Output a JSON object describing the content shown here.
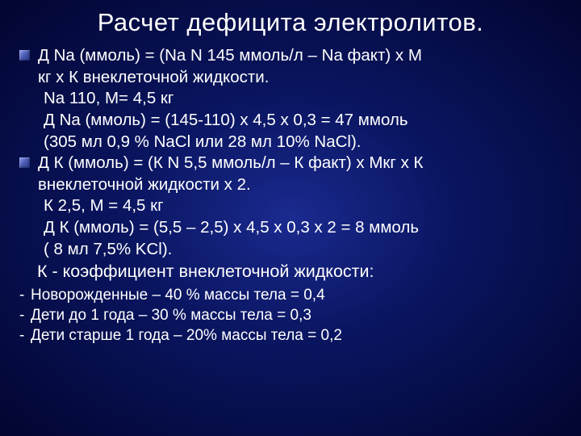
{
  "title": "Расчет дефицита электролитов.",
  "lines": {
    "na_formula_1": "Д Na (ммоль) = (Na N 145 ммоль/л – Na факт) х М",
    "na_formula_2": "кг х К внеклеточной жидкости.",
    "na_example_1": "Na 110, М= 4,5 кг",
    "na_example_2": "Д Na (ммоль) = (145-110) х 4,5 х 0,3 = 47 ммоль",
    "na_example_3": "(305 мл 0,9 % NaCl или 28 мл 10% NaCl).",
    "k_formula_1": "Д К (ммоль) = (К N 5,5 ммоль/л – К факт) х Мкг х К",
    "k_formula_2": "внеклеточной жидкости х 2.",
    "k_example_1": "К 2,5, М = 4,5 кг",
    "k_example_2": "Д К (ммоль) = (5,5 – 2,5) х 4,5 х 0,3 х 2 = 8 ммоль",
    "k_example_3": "( 8 мл 7,5% KCl).",
    "coef": "К - коэффициент внеклеточной жидкости:",
    "dash_1": "Новорожденные – 40 % массы тела = 0,4",
    "dash_2": "Дети до 1 года – 30 % массы тела = 0,3",
    "dash_3": "Дети старше 1 года – 20% массы тела = 0,2"
  },
  "colors": {
    "text": "#ffffff",
    "bg_center": "#1a2a8f",
    "bg_edge": "#020530"
  }
}
